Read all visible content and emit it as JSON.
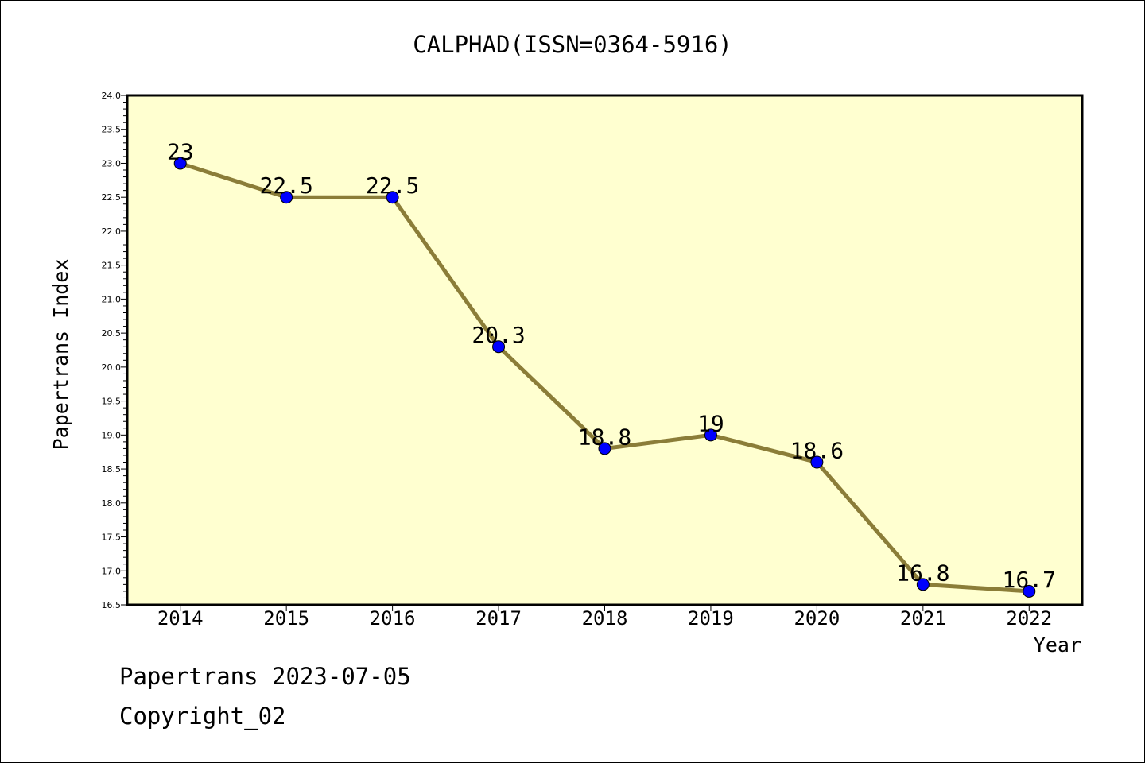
{
  "chart_data": {
    "type": "line",
    "title": "CALPHAD(ISSN=0364-5916)",
    "xlabel": "Year",
    "ylabel": "Papertrans Index",
    "categories": [
      "2014",
      "2015",
      "2016",
      "2017",
      "2018",
      "2019",
      "2020",
      "2021",
      "2022"
    ],
    "values": [
      23,
      22.5,
      22.5,
      20.3,
      18.8,
      19,
      18.6,
      16.8,
      16.7
    ],
    "data_labels": [
      "23",
      "22.5",
      "22.5",
      "20.3",
      "18.8",
      "19",
      "18.6",
      "16.8",
      "16.7"
    ],
    "ylim": [
      16.5,
      24.0
    ],
    "yticks": [
      "16.5",
      "17.0",
      "17.5",
      "18.0",
      "18.5",
      "19.0",
      "19.5",
      "20.0",
      "20.5",
      "21.0",
      "21.5",
      "22.0",
      "22.5",
      "23.0",
      "23.5",
      "24.0"
    ],
    "grid": false,
    "legend": "none",
    "colors": {
      "plot_background": "#ffffd0",
      "line": "#8b7d38",
      "marker": "#0000ff"
    }
  },
  "footer": {
    "source": "Papertrans 2023-07-05",
    "copyright": "Copyright_02"
  }
}
